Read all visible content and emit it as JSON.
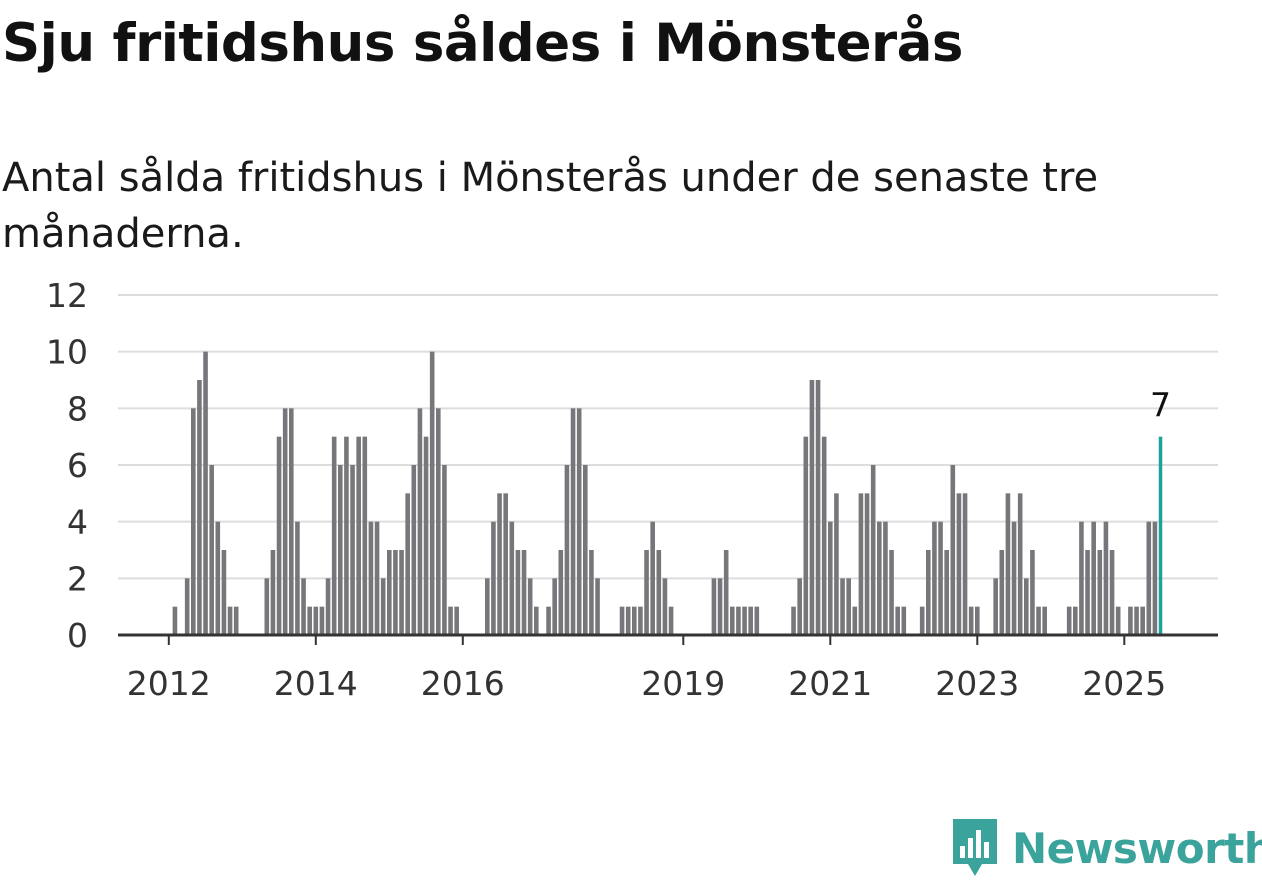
{
  "title": "Sju fritidshus såldes i Mönsterås",
  "subtitle": "Antal sålda fritidshus i Mönsterås under de senaste tre månaderna.",
  "brand": {
    "name": "Newsworthy",
    "color": "#3aa39b"
  },
  "colors": {
    "bar": "#77777b",
    "highlight": "#1aa39b",
    "grid": "#dddddd",
    "axis": "#333333",
    "text": "#333333"
  },
  "chart_data": {
    "type": "bar",
    "title": "Sju fritidshus såldes i Mönsterås",
    "subtitle": "Antal sålda fritidshus i Mönsterås under de senaste tre månaderna.",
    "xlabel": "",
    "ylabel": "",
    "ylim": [
      0,
      12
    ],
    "yticks": [
      "0",
      "2",
      "4",
      "6",
      "8",
      "10",
      "12"
    ],
    "xticks": [
      "2012",
      "2014",
      "2016",
      "2019",
      "2021",
      "2023",
      "2025"
    ],
    "xtick_months": [
      0,
      24,
      48,
      84,
      108,
      132,
      156
    ],
    "grid": true,
    "x_start": "2012-01",
    "x_end": "2025-06",
    "series": [
      {
        "values": [
          null,
          1,
          null,
          2,
          8,
          9,
          10,
          6,
          4,
          3,
          1,
          1,
          null,
          null,
          null,
          null,
          2,
          3,
          7,
          8,
          8,
          4,
          2,
          1,
          1,
          1,
          2,
          7,
          6,
          7,
          6,
          7,
          7,
          4,
          4,
          2,
          3,
          3,
          3,
          5,
          6,
          8,
          7,
          10,
          8,
          6,
          1,
          1,
          null,
          null,
          null,
          null,
          2,
          4,
          5,
          5,
          4,
          3,
          3,
          2,
          1,
          null,
          1,
          2,
          3,
          6,
          8,
          8,
          6,
          3,
          2,
          null,
          null,
          null,
          1,
          1,
          1,
          1,
          3,
          4,
          3,
          2,
          1,
          null,
          null,
          null,
          null,
          null,
          null,
          2,
          2,
          3,
          1,
          1,
          1,
          1,
          1,
          null,
          null,
          null,
          null,
          null,
          1,
          2,
          7,
          9,
          9,
          7,
          4,
          5,
          2,
          2,
          1,
          5,
          5,
          6,
          4,
          4,
          3,
          1,
          1,
          null,
          null,
          1,
          3,
          4,
          4,
          3,
          6,
          5,
          5,
          1,
          1,
          null,
          null,
          2,
          3,
          5,
          4,
          5,
          2,
          3,
          1,
          1,
          null,
          null,
          null,
          1,
          1,
          4,
          3,
          4,
          3,
          4,
          3,
          1,
          null,
          1,
          1,
          1,
          4,
          4,
          7
        ]
      }
    ],
    "highlight": {
      "label": "7",
      "value": 7,
      "date": "2025-06"
    }
  }
}
